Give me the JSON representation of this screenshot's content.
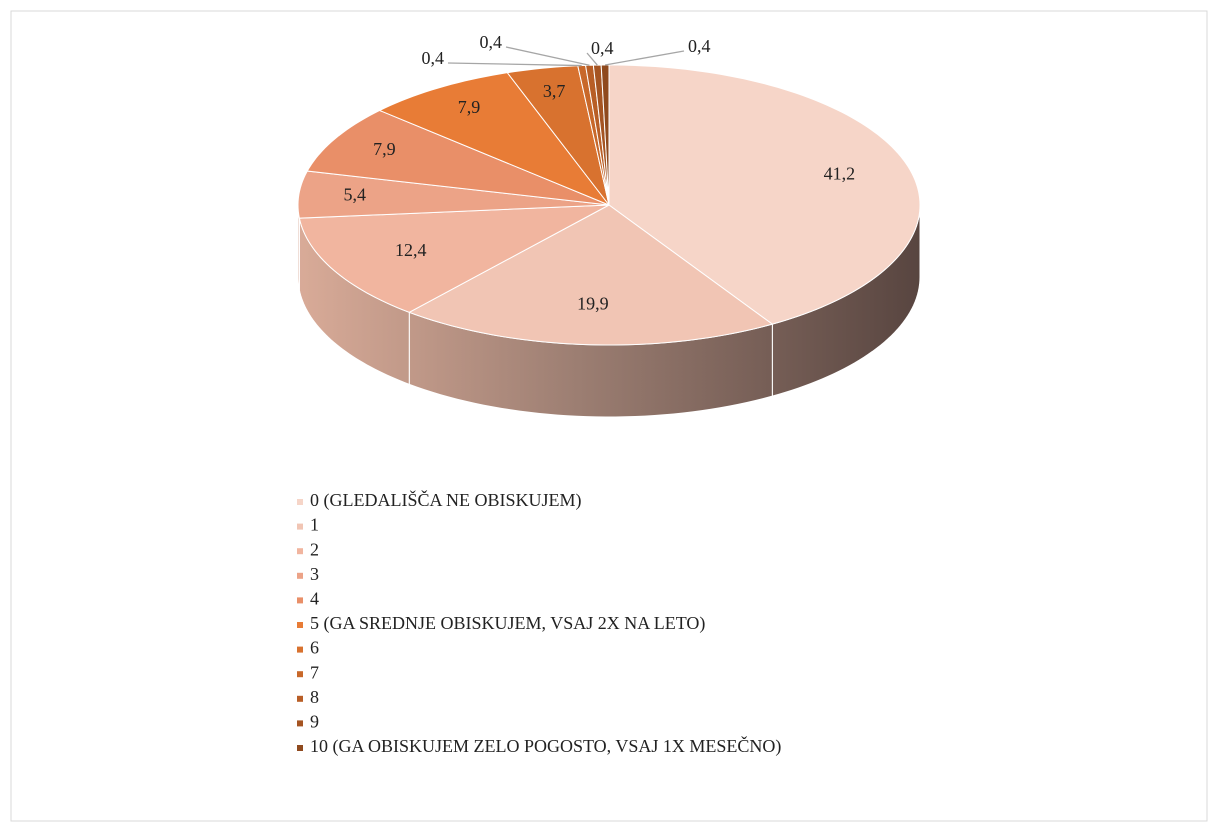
{
  "chart_data": {
    "type": "pie3d",
    "categories": [
      "0 (GLEDALIŠČA NE OBISKUJEM)",
      "1",
      "2",
      "3",
      "4",
      "5 (GA SREDNJE OBISKUJEM, VSAJ 2X NA LETO)",
      "6",
      "7",
      "8",
      "9",
      "10 (GA OBISKUJEM ZELO POGOSTO, VSAJ 1X MESEČNO)"
    ],
    "values": [
      41.2,
      19.9,
      12.4,
      5.4,
      7.9,
      7.9,
      3.7,
      0.4,
      0.4,
      0.4,
      0.4
    ],
    "value_labels": [
      "41,2",
      "19,9",
      "12,4",
      "5,4",
      "7,9",
      "7,9",
      "3,7",
      "0,4",
      "0,4",
      "0,4",
      "0,4"
    ],
    "colors": [
      "#f6d5c8",
      "#f1c5b4",
      "#f1b59f",
      "#eca387",
      "#e98f68",
      "#e87c36",
      "#d8722f",
      "#c8682a",
      "#b85e26",
      "#a55422",
      "#8f4a1e"
    ],
    "legend": "bottom"
  }
}
